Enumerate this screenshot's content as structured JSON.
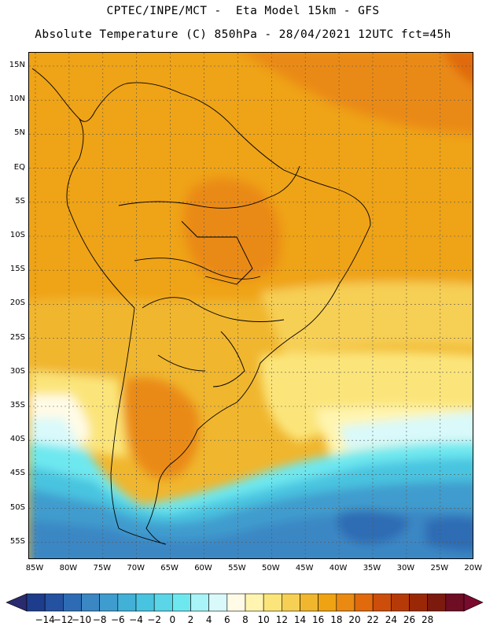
{
  "header": {
    "line1": "CPTEC/INPE/MCT -  Eta Model 15km - GFS",
    "line2": "Absolute Temperature (C) 850hPa - 28/04/2021 12UTC fct=45h"
  },
  "map": {
    "region": "South America",
    "lat_labels": [
      "15N",
      "10N",
      "5N",
      "EQ",
      "5S",
      "10S",
      "15S",
      "20S",
      "25S",
      "30S",
      "35S",
      "40S",
      "45S",
      "50S",
      "55S"
    ],
    "lon_labels": [
      "85W",
      "80W",
      "75W",
      "70W",
      "65W",
      "60W",
      "55W",
      "50W",
      "45W",
      "40W",
      "35W",
      "30W",
      "25W",
      "20W"
    ]
  },
  "colorbar": {
    "labels": [
      "-14",
      "-12",
      "-10",
      "-8",
      "-6",
      "-4",
      "-2",
      "0",
      "2",
      "4",
      "6",
      "8",
      "10",
      "12",
      "14",
      "16",
      "18",
      "20",
      "22",
      "24",
      "26",
      "28"
    ],
    "colors": [
      "#1e3c8c",
      "#2451a0",
      "#2d6cb4",
      "#3a87c4",
      "#3f9cce",
      "#41b1d8",
      "#49c4e0",
      "#5ad6e8",
      "#6ee8ef",
      "#a8f4f6",
      "#d9f9fa",
      "#fffbe6",
      "#fff5b0",
      "#fbe57a",
      "#f6cf55",
      "#f0b62e",
      "#efa312",
      "#ea8a12",
      "#e06a0c",
      "#cc4e0a",
      "#b63a08",
      "#9a2806",
      "#7c1a0e",
      "#6e0d24"
    ]
  }
}
